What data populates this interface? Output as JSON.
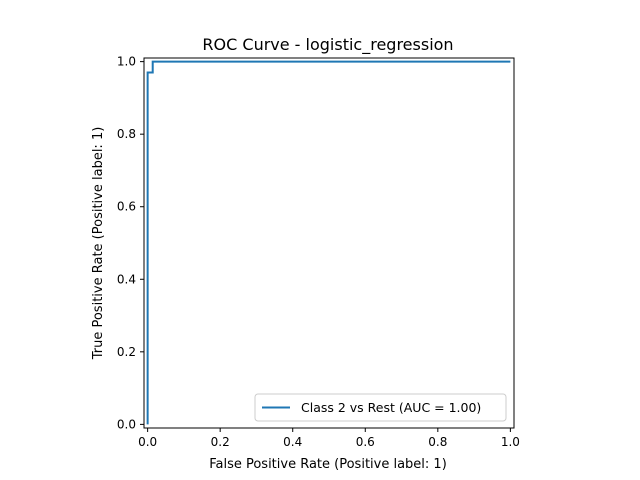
{
  "chart_data": {
    "type": "line",
    "title": "ROC Curve - logistic_regression",
    "xlabel": "False Positive Rate (Positive label: 1)",
    "ylabel": "True Positive Rate (Positive label: 1)",
    "xlim": [
      -0.01,
      1.01
    ],
    "ylim": [
      -0.01,
      1.01
    ],
    "xticks": [
      0.0,
      0.2,
      0.4,
      0.6,
      0.8,
      1.0
    ],
    "xtick_labels": [
      "0.0",
      "0.2",
      "0.4",
      "0.6",
      "0.8",
      "1.0"
    ],
    "yticks": [
      0.0,
      0.2,
      0.4,
      0.6,
      0.8,
      1.0
    ],
    "ytick_labels": [
      "0.0",
      "0.2",
      "0.4",
      "0.6",
      "0.8",
      "1.0"
    ],
    "grid": false,
    "legend_position": "lower-right",
    "series": [
      {
        "name": "Class 2 vs Rest (AUC = 1.00)",
        "color": "#1f77b4",
        "x": [
          0.0,
          0.0,
          0.0,
          0.014,
          0.014,
          1.0
        ],
        "y": [
          0.0,
          0.0,
          0.97,
          0.97,
          1.0,
          1.0
        ]
      }
    ]
  }
}
